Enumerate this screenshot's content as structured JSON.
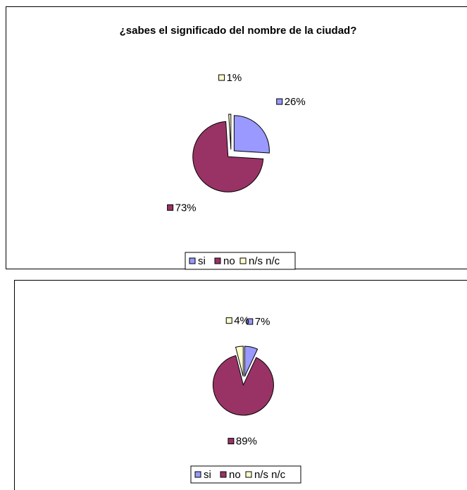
{
  "chart_data": [
    {
      "type": "pie",
      "title": "¿sabes el significado del nombre de la ciudad?",
      "categories": [
        "si",
        "no",
        "n/s n/c"
      ],
      "values": [
        26,
        73,
        1
      ],
      "value_labels": [
        "26%",
        "73%",
        "1%"
      ],
      "colors": [
        "#9999ff",
        "#993366",
        "#ffffcc"
      ]
    },
    {
      "type": "pie",
      "categories": [
        "si",
        "no",
        "n/s n/c"
      ],
      "values": [
        7,
        89,
        4
      ],
      "value_labels": [
        "7%",
        "89%",
        "4%"
      ],
      "colors": [
        "#9999ff",
        "#993366",
        "#ffffcc"
      ]
    }
  ]
}
